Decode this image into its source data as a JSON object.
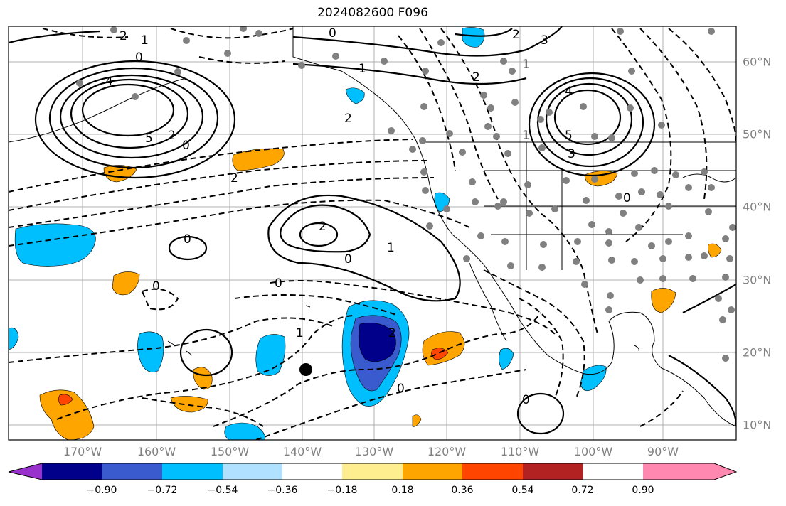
{
  "title": "2024082600 F096",
  "lon_labels": [
    "170°W",
    "160°W",
    "150°W",
    "140°W",
    "130°W",
    "120°W",
    "110°W",
    "100°W",
    "90°W"
  ],
  "lat_labels": [
    "60°N",
    "50°N",
    "40°N",
    "30°N",
    "20°N",
    "10°N"
  ],
  "colorbar": {
    "ticks": [
      "−0.90",
      "−0.72",
      "−0.54",
      "−0.36",
      "−0.18",
      "0.18",
      "0.36",
      "0.54",
      "0.72",
      "0.90"
    ],
    "colors": [
      "#9932cc",
      "#00008b",
      "#3a5bcd",
      "#00bfff",
      "#b0e2ff",
      "#ffffff",
      "#ffee90",
      "#ffa500",
      "#ff4500",
      "#b22222",
      "#ff88b0"
    ]
  },
  "contour_labels": [
    "2",
    "1",
    "0",
    "4",
    "5",
    "2",
    "0",
    "2",
    "1",
    "2",
    "0",
    "2",
    "1",
    "2",
    "4",
    "3",
    "1",
    "0",
    "2",
    "1",
    "0",
    "5",
    "0",
    "0",
    "1",
    "2",
    "0",
    "0",
    "0",
    "3"
  ],
  "colors": {
    "pos_fill": "#ffa500",
    "pos_strong": "#ff4500",
    "neg_light": "#00bfff",
    "neg_mid": "#3a5bcd",
    "neg_dark": "#00008b",
    "point": "#808080"
  }
}
